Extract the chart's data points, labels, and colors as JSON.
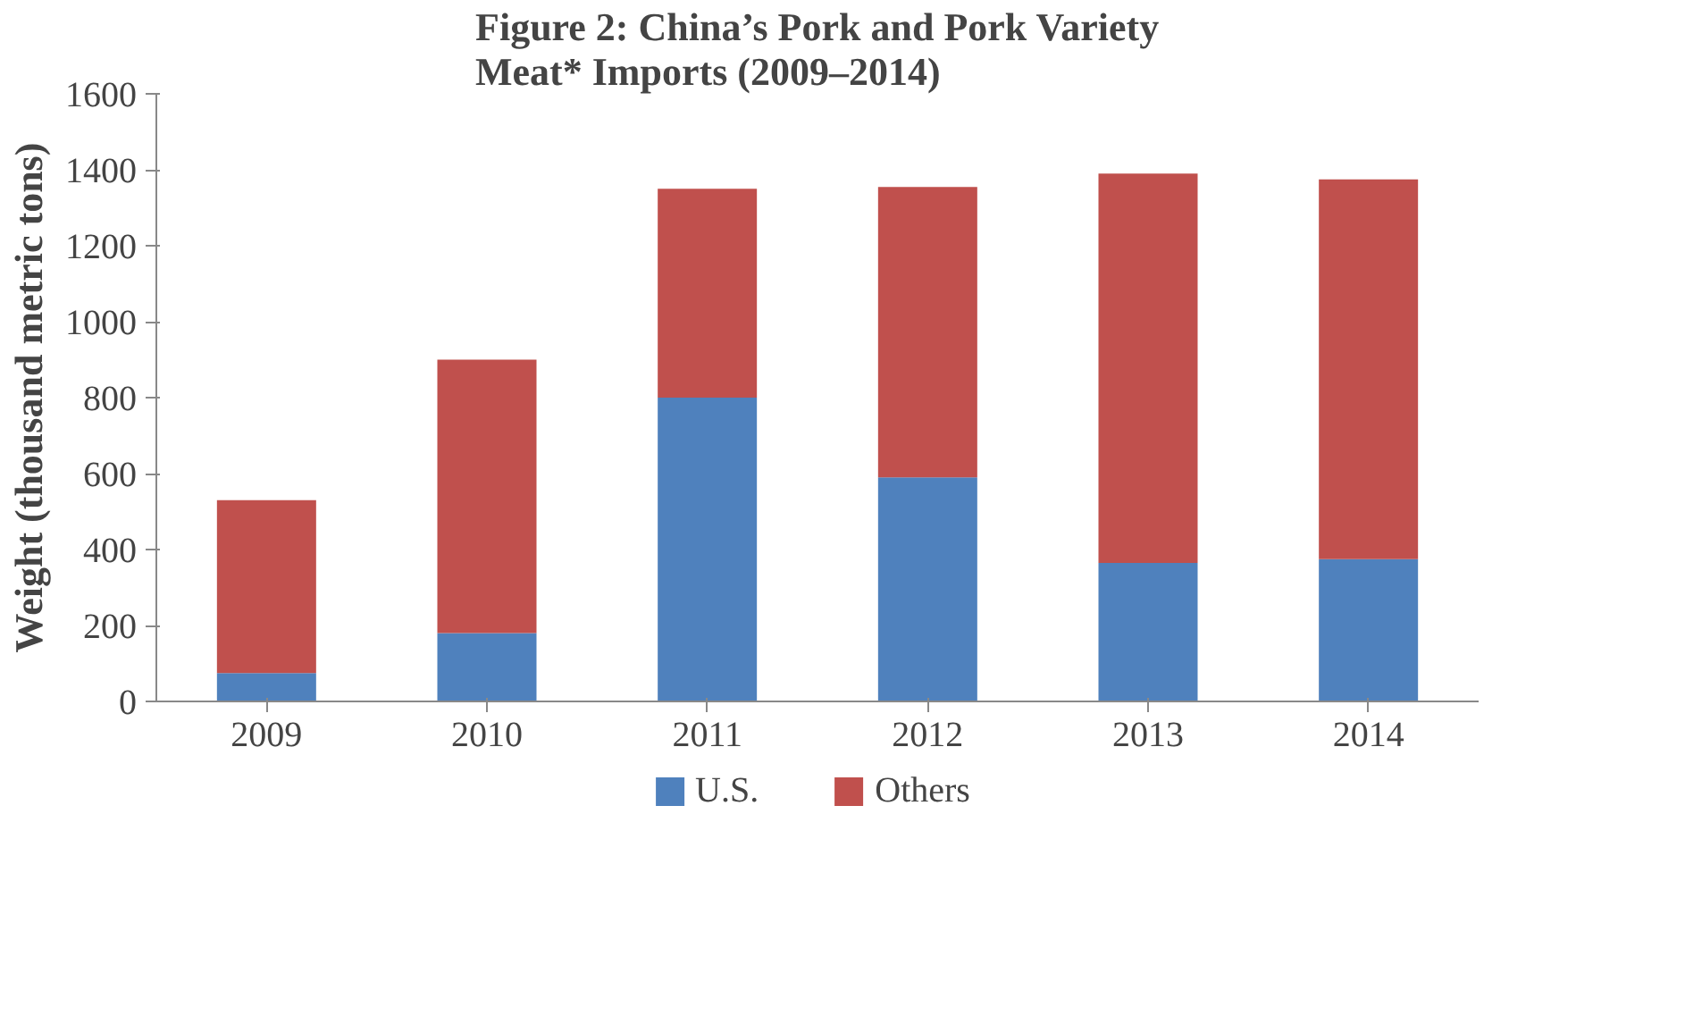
{
  "chart_data": {
    "type": "bar",
    "stacked": true,
    "title": "Figure 2: China’s Pork and Pork Variety\nMeat* Imports (2009–2014)",
    "ylabel": "Weight (thousand metric tons)",
    "categories": [
      "2009",
      "2010",
      "2011",
      "2012",
      "2013",
      "2014"
    ],
    "series": [
      {
        "name": "U.S.",
        "color": "#4f81bd",
        "values": [
          75,
          180,
          800,
          590,
          365,
          375
        ]
      },
      {
        "name": "Others",
        "color": "#c0504d",
        "values": [
          455,
          720,
          550,
          765,
          1025,
          1000
        ]
      }
    ],
    "ylim": [
      0,
      1600
    ],
    "yticks": [
      0,
      200,
      400,
      600,
      800,
      1000,
      1200,
      1400,
      1600
    ],
    "grid": false,
    "legend": "bottom"
  }
}
